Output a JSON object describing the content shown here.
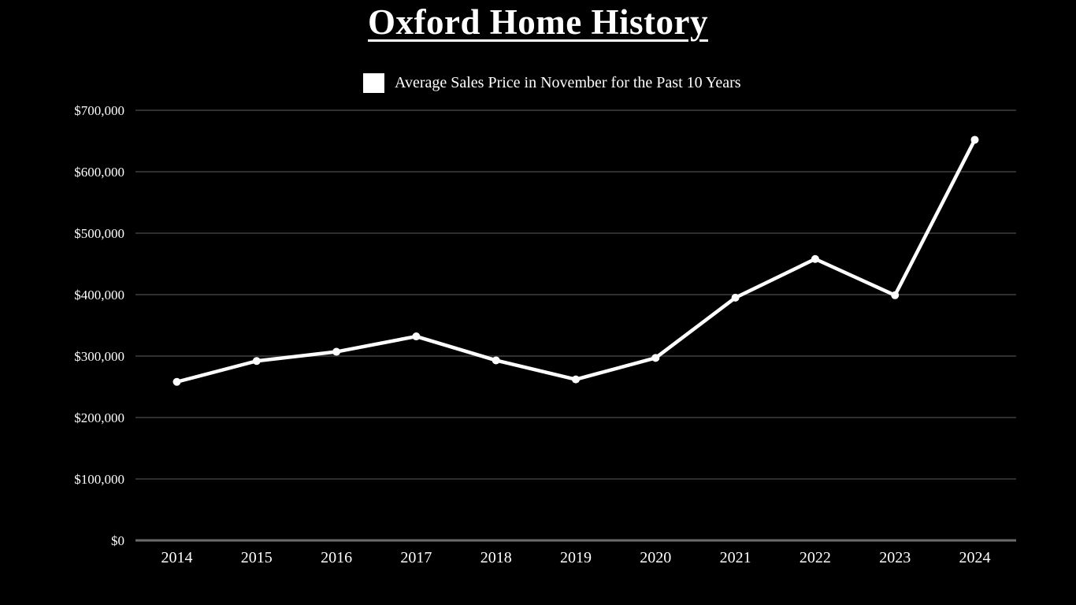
{
  "page": {
    "background_color": "#000000",
    "text_color": "#ffffff"
  },
  "header": {
    "title": "Oxford Home History"
  },
  "legend": {
    "swatch_color": "#ffffff",
    "label": "Average Sales Price in November for the Past 10 Years"
  },
  "chart_data": {
    "type": "line",
    "title": "Oxford Home History",
    "categories": [
      "2014",
      "2015",
      "2016",
      "2017",
      "2018",
      "2019",
      "2020",
      "2021",
      "2022",
      "2023",
      "2024"
    ],
    "series": [
      {
        "name": "Average Sales Price in November for the Past 10 Years",
        "values": [
          258000,
          292000,
          307000,
          332000,
          293000,
          262000,
          297000,
          395000,
          458000,
          399000,
          652000
        ]
      }
    ],
    "xlabel": "",
    "ylabel": "",
    "ylim": [
      0,
      700000
    ],
    "ytick_interval": 100000,
    "ytick_labels": [
      "$0",
      "$100,000",
      "$200,000",
      "$300,000",
      "$400,000",
      "$500,000",
      "$600,000",
      "$700,000"
    ],
    "grid": true,
    "legend_position": "top-center",
    "line_color": "#ffffff",
    "marker": "circle",
    "marker_color": "#ffffff",
    "gridline_color": "#303030",
    "axis_line_color": "#6b6b6b",
    "tick_label_color": "#ffffff"
  }
}
